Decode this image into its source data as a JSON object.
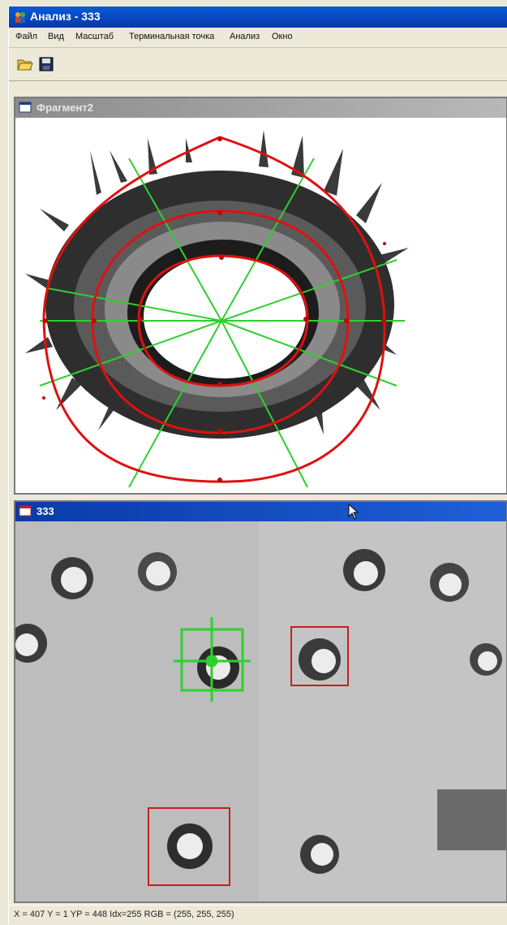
{
  "window": {
    "title": "Анализ - 333",
    "app_icon": "people-app-icon"
  },
  "menu": {
    "items": [
      {
        "label": "Файл"
      },
      {
        "label": "Вид"
      },
      {
        "label": "Масштаб"
      },
      {
        "label": "Терминальная точка"
      },
      {
        "label": "Анализ"
      },
      {
        "label": "Окно"
      }
    ]
  },
  "toolbar": {
    "buttons": [
      {
        "icon": "open-folder-icon"
      },
      {
        "icon": "save-disk-icon"
      }
    ]
  },
  "fragment_window": {
    "title": "Фрагмент2",
    "icon": "window-icon"
  },
  "image_window": {
    "title": "333",
    "icon": "image-window-icon"
  },
  "status": {
    "text": "X = 407 Y = 1 YP = 448 Idx=255  RGB = (255, 255, 255)"
  },
  "colors": {
    "title_active": "#0a3aa8",
    "title_inactive": "#8c8c8c",
    "contour_red": "#e01010",
    "ray_green": "#2ed02e",
    "selection_red": "#c42020"
  }
}
